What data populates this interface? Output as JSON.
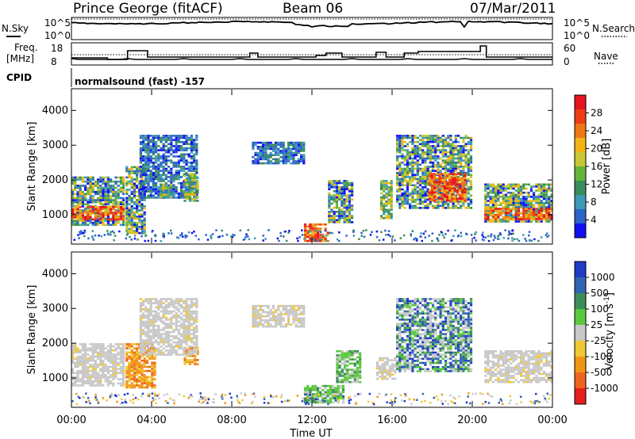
{
  "header": {
    "station": "Prince George (fitACF)",
    "beam": "Beam 06",
    "date": "07/Mar/2011"
  },
  "summary": {
    "nsky_label": "N.Sky",
    "nsearch_label": "N.Search",
    "freq_label_line1": "Freq.",
    "freq_label_line2": "[MHz]",
    "nave_label": "Nave",
    "cpid_label": "CPID",
    "cpid_text": "normalsound (fast) -157",
    "noise_left_ticks": [
      "10^5",
      "10^0"
    ],
    "noise_right_ticks": [
      "10^5",
      "10^0"
    ],
    "freq_ticks": [
      "18",
      "8"
    ],
    "nave_ticks": [
      "60",
      "0"
    ]
  },
  "chart_data": [
    {
      "type": "heatmap",
      "name": "power",
      "ylabel": "Slant Range [km]",
      "xlabel": "",
      "x_ticks": [
        "00:00",
        "04:00",
        "08:00",
        "12:00",
        "16:00",
        "20:00",
        "00:00"
      ],
      "y_ticks": [
        "1000",
        "2000",
        "3000",
        "4000"
      ],
      "xlim_hours": [
        0,
        24
      ],
      "ylim_km": [
        180,
        4600
      ],
      "colorbar": {
        "label": "Power [dB]",
        "ticks": [
          "4",
          "8",
          "12",
          "16",
          "20",
          "24",
          "28"
        ],
        "colors": [
          "#1010f0",
          "#2d64c8",
          "#3c9ab4",
          "#3a8c5a",
          "#64b43c",
          "#c8c832",
          "#f0b414",
          "#f07814",
          "#f03c14",
          "#e6141e"
        ]
      },
      "regions": [
        {
          "t": [
            0.0,
            2.6
          ],
          "r": [
            700,
            2100
          ],
          "level": "mixed"
        },
        {
          "t": [
            0.0,
            2.6
          ],
          "r": [
            850,
            1250
          ],
          "level": "high"
        },
        {
          "t": [
            2.7,
            3.6
          ],
          "r": [
            500,
            2400
          ],
          "level": "mixed"
        },
        {
          "t": [
            3.4,
            6.2
          ],
          "r": [
            1500,
            3300
          ],
          "level": "low"
        },
        {
          "t": [
            5.6,
            6.3
          ],
          "r": [
            1400,
            2200
          ],
          "level": "mid"
        },
        {
          "t": [
            4.4,
            5.0
          ],
          "r": [
            1500,
            1900
          ],
          "level": "mid"
        },
        {
          "t": [
            9.0,
            11.6
          ],
          "r": [
            2500,
            3100
          ],
          "level": "low"
        },
        {
          "t": [
            11.6,
            12.8
          ],
          "r": [
            250,
            750
          ],
          "level": "high"
        },
        {
          "t": [
            12.8,
            14.0
          ],
          "r": [
            800,
            2000
          ],
          "level": "mixed"
        },
        {
          "t": [
            15.4,
            16.0
          ],
          "r": [
            900,
            2000
          ],
          "level": "mid"
        },
        {
          "t": [
            16.2,
            20.0
          ],
          "r": [
            1200,
            3300
          ],
          "level": "mixed"
        },
        {
          "t": [
            17.8,
            19.6
          ],
          "r": [
            1400,
            2200
          ],
          "level": "high"
        },
        {
          "t": [
            20.6,
            24.0
          ],
          "r": [
            800,
            1900
          ],
          "level": "mixed"
        },
        {
          "t": [
            20.6,
            24.0
          ],
          "r": [
            850,
            1200
          ],
          "level": "high"
        }
      ]
    },
    {
      "type": "heatmap",
      "name": "velocity",
      "ylabel": "Slant Range [km]",
      "xlabel": "Time UT",
      "x_ticks": [
        "00:00",
        "04:00",
        "08:00",
        "12:00",
        "16:00",
        "20:00",
        "00:00"
      ],
      "y_ticks": [
        "1000",
        "2000",
        "3000",
        "4000"
      ],
      "xlim_hours": [
        0,
        24
      ],
      "ylim_km": [
        180,
        4600
      ],
      "colorbar": {
        "label": "Velocity [m s",
        "label_sup": "-1",
        "label_end": "]",
        "ticks": [
          "1000",
          "500",
          "100",
          "25",
          "-25",
          "-100",
          "-500",
          "-1000"
        ],
        "colors": [
          "#1e3cc8",
          "#3264b4",
          "#3c8c5a",
          "#5ac83c",
          "#c8c8c8",
          "#f0c832",
          "#f09614",
          "#f0641e",
          "#e61e1e"
        ]
      },
      "regions": [
        {
          "t": [
            0.0,
            2.6
          ],
          "r": [
            800,
            2000
          ],
          "level": "gray"
        },
        {
          "t": [
            2.7,
            4.2
          ],
          "r": [
            700,
            2000
          ],
          "level": "neg"
        },
        {
          "t": [
            5.6,
            6.3
          ],
          "r": [
            1400,
            1900
          ],
          "level": "neg"
        },
        {
          "t": [
            3.4,
            6.2
          ],
          "r": [
            1700,
            3300
          ],
          "level": "gray"
        },
        {
          "t": [
            9.0,
            11.6
          ],
          "r": [
            2500,
            3100
          ],
          "level": "gray"
        },
        {
          "t": [
            11.6,
            13.6
          ],
          "r": [
            300,
            800
          ],
          "level": "green"
        },
        {
          "t": [
            13.2,
            14.4
          ],
          "r": [
            900,
            1800
          ],
          "level": "green"
        },
        {
          "t": [
            15.2,
            16.2
          ],
          "r": [
            1000,
            1600
          ],
          "level": "gray"
        },
        {
          "t": [
            16.2,
            20.0
          ],
          "r": [
            1200,
            3300
          ],
          "level": "mixpos"
        },
        {
          "t": [
            20.6,
            24.0
          ],
          "r": [
            900,
            1800
          ],
          "level": "gray"
        }
      ]
    }
  ]
}
